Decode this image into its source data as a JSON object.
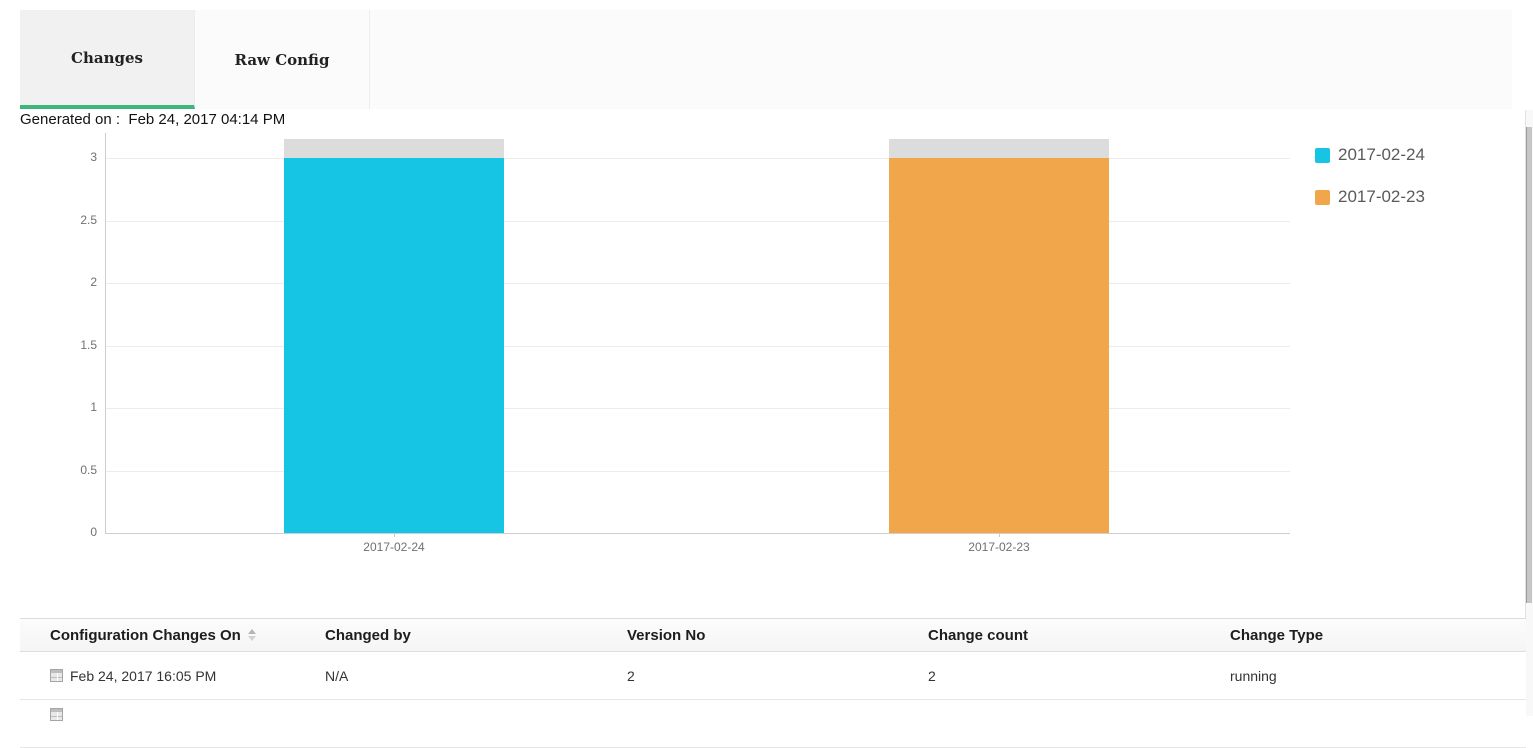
{
  "tabs": {
    "items": [
      {
        "label": "Changes",
        "active": true
      },
      {
        "label": "Raw Config",
        "active": false
      }
    ]
  },
  "generated_on": {
    "label": "Generated on :",
    "value": "Feb 24, 2017 04:14 PM"
  },
  "chart_data": {
    "type": "bar",
    "title": "",
    "xlabel": "",
    "ylabel": "",
    "categories": [
      "2017-02-24",
      "2017-02-23"
    ],
    "values": [
      3,
      3
    ],
    "colors": [
      "#16c4e4",
      "#f2a64c"
    ],
    "gray_cap": {
      "value": 0.15,
      "color": "#dcdcdc"
    },
    "yticks": [
      0,
      0.5,
      1,
      1.5,
      2,
      2.5,
      3
    ],
    "ylim": [
      0,
      3.2
    ],
    "grid": true,
    "legend_position": "right",
    "legend": [
      {
        "label": "2017-02-24",
        "color": "#16c4e4"
      },
      {
        "label": "2017-02-23",
        "color": "#f2a64c"
      }
    ]
  },
  "table": {
    "columns": [
      "Configuration Changes On",
      "Changed by",
      "Version No",
      "Change count",
      "Change Type"
    ],
    "sorted_column": "Configuration Changes On",
    "rows": [
      {
        "config_changes_on": "Feb 24, 2017 16:05 PM",
        "changed_by": "N/A",
        "version_no": "2",
        "change_count": "2",
        "change_type": "running"
      }
    ]
  },
  "colors": {
    "accent_green": "#3bb77e",
    "bar_cyan": "#16c4e4",
    "bar_orange": "#f2a64c",
    "gray_cap": "#dcdcdc"
  }
}
